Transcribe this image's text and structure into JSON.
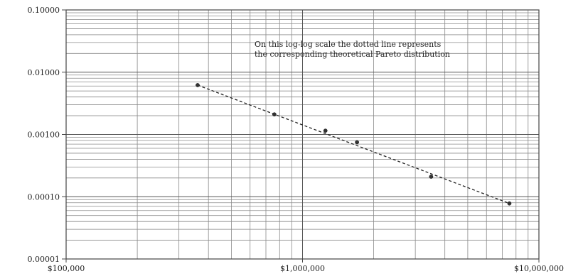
{
  "chart_data": {
    "type": "scatter",
    "title": "",
    "xlabel": "",
    "ylabel": "",
    "x_scale": "log",
    "y_scale": "log",
    "xlim": [
      100000,
      10000000
    ],
    "ylim": [
      1e-05,
      0.1
    ],
    "grid": true,
    "x_ticks": [
      {
        "value": 100000,
        "label": "$100,000"
      },
      {
        "value": 1000000,
        "label": "$1,000,000"
      },
      {
        "value": 10000000,
        "label": "$10,000,000"
      }
    ],
    "y_ticks": [
      {
        "value": 0.1,
        "label": "0.10000"
      },
      {
        "value": 0.01,
        "label": "0.01000"
      },
      {
        "value": 0.001,
        "label": "0.00100"
      },
      {
        "value": 0.0001,
        "label": "0.00010"
      },
      {
        "value": 1e-05,
        "label": "0.00001"
      }
    ],
    "series": [
      {
        "points": [
          {
            "x": 360000,
            "y": 0.0062
          },
          {
            "x": 760000,
            "y": 0.0021
          },
          {
            "x": 1250000,
            "y": 0.00115
          },
          {
            "x": 1700000,
            "y": 0.00075
          },
          {
            "x": 3500000,
            "y": 0.00021
          },
          {
            "x": 7500000,
            "y": 7.8e-05
          }
        ],
        "color": "#333333"
      }
    ],
    "trendline": {
      "style": "dotted",
      "from": {
        "x": 360000,
        "y": 0.0062
      },
      "to": {
        "x": 7500000,
        "y": 7.8e-05
      }
    },
    "annotation": {
      "lines": [
        "On this log-log scale the dotted line represents",
        "the corresponding theoretical Pareto distribution"
      ]
    }
  }
}
